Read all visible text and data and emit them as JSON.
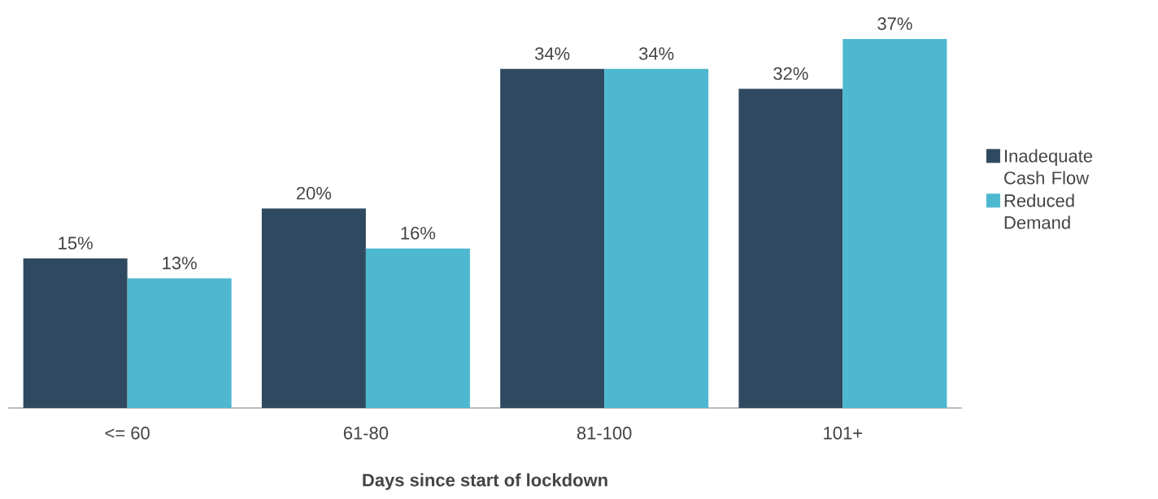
{
  "chart_data": {
    "type": "bar",
    "xlabel": "Days since start of lockdown",
    "categories": [
      "<= 60",
      "61-80",
      "81-100",
      "101+"
    ],
    "series": [
      {
        "name": "Inadequate Cash Flow",
        "color": "#2f4a60",
        "values": [
          15,
          20,
          34,
          32
        ],
        "value_labels": [
          "15%",
          "20%",
          "34%",
          "32%"
        ]
      },
      {
        "name": "Reduced Demand",
        "color": "#4db8cf",
        "values": [
          13,
          16,
          34,
          37
        ],
        "value_labels": [
          "13%",
          "16%",
          "34%",
          "37%"
        ]
      }
    ],
    "legend": "right"
  }
}
